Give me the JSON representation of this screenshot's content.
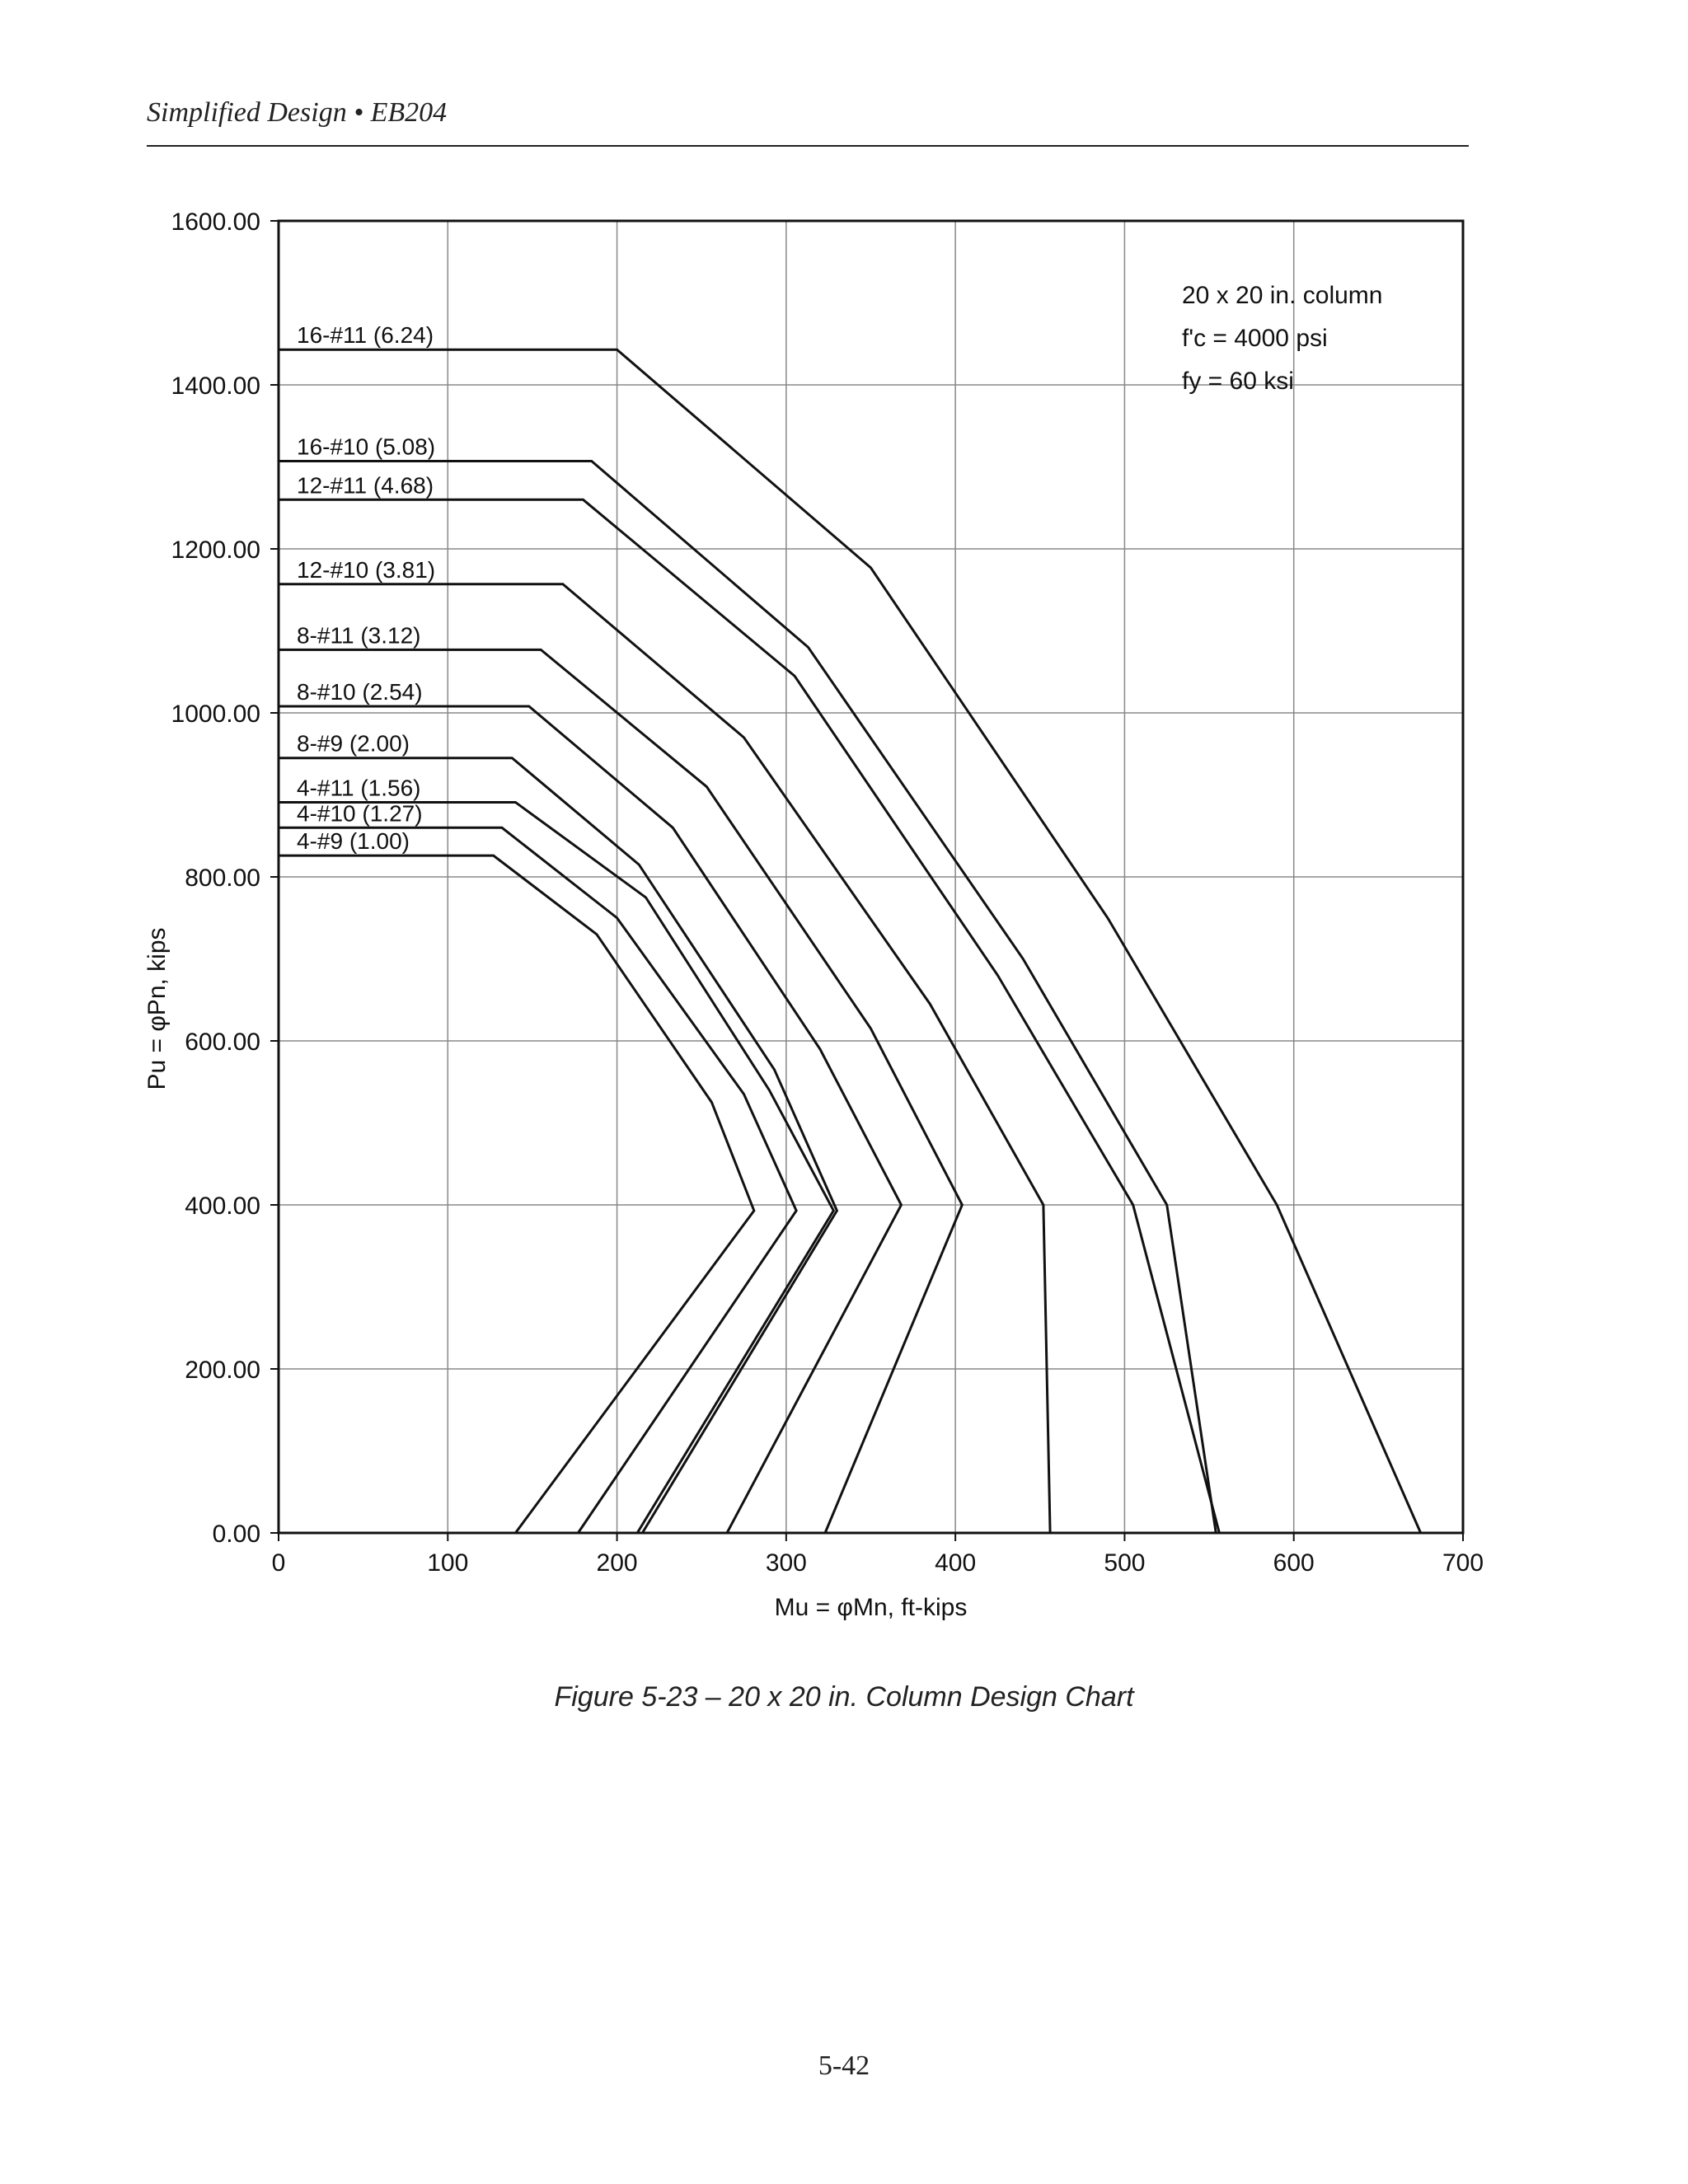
{
  "page": {
    "header": "Simplified Design • EB204",
    "caption": "Figure 5-23 – 20 x 20 in. Column Design Chart",
    "page_number": "5-42"
  },
  "chart_data": {
    "type": "line",
    "title": "",
    "xlabel": "Mu = φMn, ft-kips",
    "ylabel": "Pu = φPn, kips",
    "xlim": [
      0,
      700
    ],
    "ylim": [
      0,
      1600
    ],
    "grid": true,
    "x_ticks": [
      0,
      100,
      200,
      300,
      400,
      500,
      600,
      700
    ],
    "x_tick_labels": [
      "0",
      "100",
      "200",
      "300",
      "400",
      "500",
      "600",
      "700"
    ],
    "y_ticks": [
      0,
      200,
      400,
      600,
      800,
      1000,
      1200,
      1400,
      1600
    ],
    "y_tick_labels": [
      "0.00",
      "200.00",
      "400.00",
      "600.00",
      "800.00",
      "1000.00",
      "1200.00",
      "1400.00",
      "1600.00"
    ],
    "annotation": {
      "lines": [
        "20 x 20 in. column",
        "f'c = 4000 psi",
        "fy = 60 ksi"
      ]
    },
    "series": [
      {
        "name": "16-#11 (6.24)",
        "points": [
          [
            0,
            1443
          ],
          [
            200,
            1443
          ],
          [
            350,
            1177
          ],
          [
            490,
            750
          ],
          [
            590,
            400
          ],
          [
            675,
            0
          ]
        ]
      },
      {
        "name": "16-#10 (5.08)",
        "points": [
          [
            0,
            1307
          ],
          [
            185,
            1307
          ],
          [
            313,
            1080
          ],
          [
            440,
            700
          ],
          [
            525,
            400
          ],
          [
            554,
            0
          ]
        ]
      },
      {
        "name": "12-#11 (4.68)",
        "points": [
          [
            0,
            1260
          ],
          [
            180,
            1260
          ],
          [
            305,
            1045
          ],
          [
            425,
            680
          ],
          [
            505,
            400
          ],
          [
            556,
            0
          ]
        ]
      },
      {
        "name": "12-#10 (3.81)",
        "points": [
          [
            0,
            1157
          ],
          [
            168,
            1157
          ],
          [
            275,
            970
          ],
          [
            385,
            645
          ],
          [
            452,
            400
          ],
          [
            456,
            0
          ]
        ]
      },
      {
        "name": "8-#11 (3.12)",
        "points": [
          [
            0,
            1077
          ],
          [
            155,
            1077
          ],
          [
            253,
            910
          ],
          [
            350,
            615
          ],
          [
            404,
            400
          ],
          [
            323,
            0
          ]
        ]
      },
      {
        "name": "8-#10 (2.54)",
        "points": [
          [
            0,
            1008
          ],
          [
            148,
            1008
          ],
          [
            233,
            860
          ],
          [
            320,
            590
          ],
          [
            368,
            400
          ],
          [
            265,
            0
          ]
        ]
      },
      {
        "name": "8-#9 (2.00)",
        "points": [
          [
            0,
            945
          ],
          [
            138,
            945
          ],
          [
            213,
            815
          ],
          [
            293,
            565
          ],
          [
            330,
            393
          ],
          [
            215,
            0
          ]
        ]
      },
      {
        "name": "4-#11 (1.56)",
        "points": [
          [
            0,
            891
          ],
          [
            140,
            891
          ],
          [
            217,
            775
          ],
          [
            290,
            540
          ],
          [
            328,
            393
          ],
          [
            212,
            0
          ]
        ]
      },
      {
        "name": "4-#10 (1.27)",
        "points": [
          [
            0,
            860
          ],
          [
            132,
            860
          ],
          [
            200,
            750
          ],
          [
            275,
            535
          ],
          [
            306,
            393
          ],
          [
            177,
            0
          ]
        ]
      },
      {
        "name": "4-#9 (1.00)",
        "points": [
          [
            0,
            826
          ],
          [
            127,
            826
          ],
          [
            188,
            730
          ],
          [
            256,
            525
          ],
          [
            281,
            393
          ],
          [
            140,
            0
          ]
        ]
      }
    ]
  }
}
